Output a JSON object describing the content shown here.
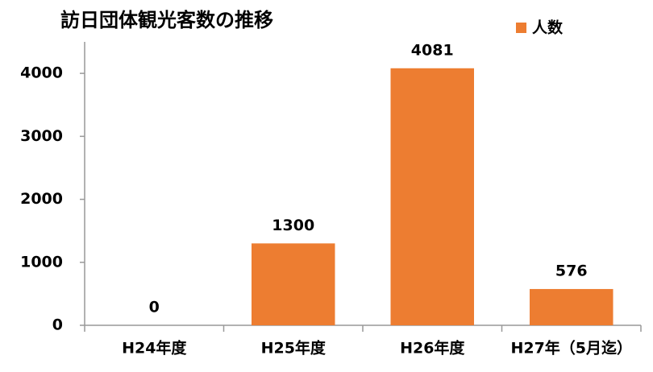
{
  "chart_data": {
    "type": "bar",
    "title": "訪日団体観光客数の推移",
    "categories": [
      "H24年度",
      "H25年度",
      "H26年度",
      "H27年（5月迄）"
    ],
    "series": [
      {
        "name": "人数",
        "color": "#ed7d31",
        "values": [
          0,
          1300,
          4081,
          576
        ]
      }
    ],
    "ylim": [
      0,
      4500
    ],
    "yticks": [
      0,
      1000,
      2000,
      3000,
      4000
    ],
    "grid": false,
    "legend": "top-right"
  }
}
